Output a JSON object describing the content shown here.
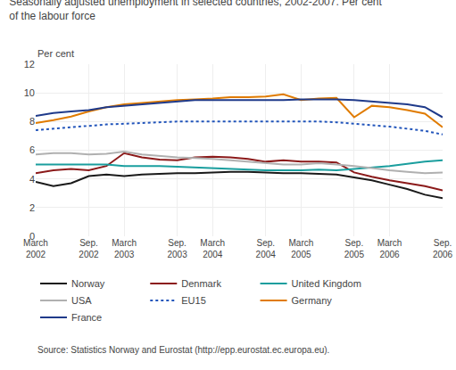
{
  "chart_data": {
    "type": "line",
    "title": "Seasonally adjusted unemployment in selected countries, 2002-2007. Per cent\nof the labour force",
    "y_label": "Per cent",
    "annotations": [
      "Source: Statistics Norway and Eurostat (http://epp.eurostat.ec.europa.eu)."
    ],
    "categories": [
      "March\n2002",
      null,
      null,
      "Sep.\n2002",
      null,
      "March\n2003",
      null,
      null,
      "Sep.\n2003",
      null,
      "March\n2004",
      null,
      null,
      "Sep.\n2004",
      null,
      "March\n2005",
      null,
      null,
      "Sep.\n2005",
      null,
      "March\n2006",
      null,
      null,
      "Sep.\n2006"
    ],
    "series": [
      {
        "name": "Norway",
        "color": "#1a1a1a",
        "line_style": "solid",
        "values": [
          3.8,
          3.5,
          3.7,
          4.2,
          4.3,
          4.2,
          4.3,
          4.35,
          4.4,
          4.4,
          4.45,
          4.5,
          4.5,
          4.45,
          4.4,
          4.4,
          4.35,
          4.3,
          4.1,
          3.9,
          3.6,
          3.3,
          2.9,
          2.65
        ]
      },
      {
        "name": "Denmark",
        "color": "#8b1a1a",
        "line_style": "solid",
        "values": [
          4.4,
          4.6,
          4.7,
          4.6,
          4.9,
          5.8,
          5.5,
          5.35,
          5.3,
          5.5,
          5.55,
          5.5,
          5.4,
          5.2,
          5.3,
          5.2,
          5.2,
          5.15,
          4.45,
          4.15,
          3.9,
          3.7,
          3.5,
          3.2
        ]
      },
      {
        "name": "United Kingdom",
        "color": "#1a9e9e",
        "line_style": "solid",
        "values": [
          5.0,
          5.0,
          5.0,
          5.0,
          5.0,
          4.9,
          4.9,
          4.9,
          4.85,
          4.8,
          4.75,
          4.7,
          4.65,
          4.6,
          4.6,
          4.6,
          4.65,
          4.6,
          4.7,
          4.8,
          4.9,
          5.05,
          5.2,
          5.3
        ]
      },
      {
        "name": "USA",
        "color": "#b0b0b0",
        "line_style": "solid",
        "values": [
          5.7,
          5.8,
          5.8,
          5.7,
          5.75,
          5.9,
          5.7,
          5.6,
          5.5,
          5.45,
          5.4,
          5.3,
          5.2,
          5.1,
          5.0,
          5.0,
          5.1,
          5.0,
          4.9,
          4.75,
          4.6,
          4.5,
          4.4,
          4.45
        ]
      },
      {
        "name": "EU15",
        "color": "#2255bb",
        "line_style": "dotted",
        "values": [
          7.4,
          7.5,
          7.6,
          7.7,
          7.8,
          7.85,
          7.9,
          7.95,
          8.0,
          8.0,
          8.0,
          8.0,
          8.0,
          8.0,
          8.0,
          8.0,
          8.0,
          7.95,
          7.85,
          7.75,
          7.65,
          7.5,
          7.35,
          7.1
        ]
      },
      {
        "name": "Germany",
        "color": "#e07b00",
        "line_style": "solid",
        "values": [
          7.9,
          8.1,
          8.35,
          8.7,
          9.0,
          9.2,
          9.3,
          9.4,
          9.5,
          9.55,
          9.6,
          9.7,
          9.7,
          9.75,
          9.9,
          9.5,
          9.6,
          9.65,
          8.3,
          9.1,
          9.0,
          8.8,
          8.55,
          7.6
        ]
      },
      {
        "name": "France",
        "color": "#1f3a8a",
        "line_style": "solid",
        "values": [
          8.4,
          8.6,
          8.7,
          8.8,
          9.0,
          9.1,
          9.2,
          9.3,
          9.4,
          9.5,
          9.5,
          9.5,
          9.5,
          9.5,
          9.5,
          9.55,
          9.55,
          9.55,
          9.5,
          9.4,
          9.3,
          9.2,
          9.0,
          8.3
        ]
      }
    ],
    "ylim": [
      0,
      12
    ],
    "yticks": [
      0,
      2,
      4,
      6,
      8,
      10,
      12
    ],
    "grid": true,
    "legend": "bottom"
  }
}
